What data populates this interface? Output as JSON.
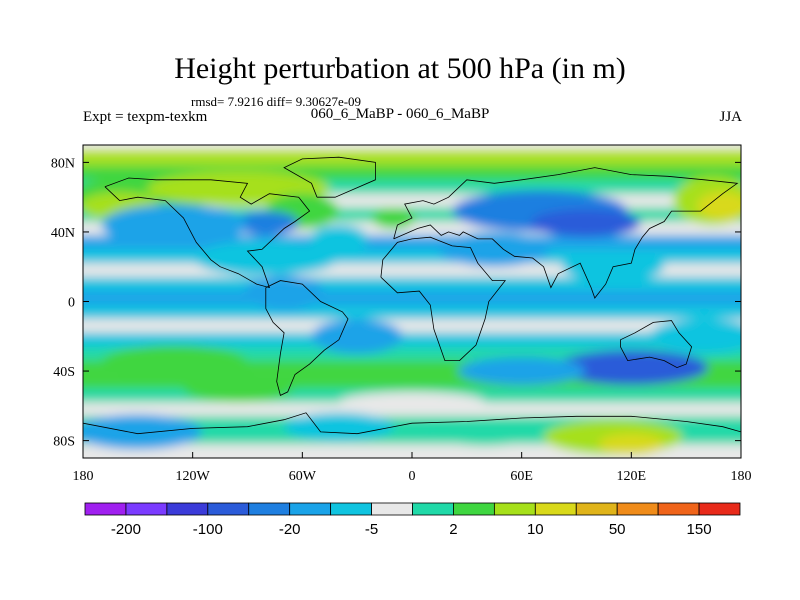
{
  "chart_data": {
    "type": "heatmap",
    "title": "Height perturbation at 500 hPa (in m)",
    "stats_label": "rmsd= 7.9216 diff= 9.30627e-09",
    "experiment_label": "Expt = texpm-texkm",
    "experiment_name": "060_6_MaBP - 060_6_MaBP",
    "season": "JJA",
    "xlim": [
      -180,
      180
    ],
    "ylim": [
      -90,
      90
    ],
    "x_ticks": [
      {
        "value": -180,
        "label": "180"
      },
      {
        "value": -120,
        "label": "120W"
      },
      {
        "value": -60,
        "label": "60W"
      },
      {
        "value": 0,
        "label": "0"
      },
      {
        "value": 60,
        "label": "60E"
      },
      {
        "value": 120,
        "label": "120E"
      },
      {
        "value": 180,
        "label": "180"
      }
    ],
    "y_ticks": [
      {
        "value": 80,
        "label": "80N"
      },
      {
        "value": 40,
        "label": "40N"
      },
      {
        "value": 0,
        "label": "0"
      },
      {
        "value": -40,
        "label": "40S"
      },
      {
        "value": -80,
        "label": "80S"
      }
    ],
    "colorbar": {
      "colors": [
        "#a020f0",
        "#7b3bff",
        "#3b3bd9",
        "#2b5bd9",
        "#1f7fe0",
        "#1aa3e8",
        "#10c4e0",
        "#e8e8e8",
        "#20d9a8",
        "#3fd640",
        "#a6e01a",
        "#d9d91a",
        "#e0b41a",
        "#f08c1a",
        "#f0641a",
        "#e82a1a"
      ],
      "labels": [
        {
          "boundary": 1,
          "text": "-200"
        },
        {
          "boundary": 3,
          "text": "-100"
        },
        {
          "boundary": 5,
          "text": "-20"
        },
        {
          "boundary": 7,
          "text": "-5"
        },
        {
          "boundary": 9,
          "text": "2"
        },
        {
          "boundary": 11,
          "text": "10"
        },
        {
          "boundary": 13,
          "text": "50"
        },
        {
          "boundary": 15,
          "text": "150"
        }
      ]
    },
    "bands": [
      {
        "lat": 82,
        "level": 3
      },
      {
        "lat": 74,
        "level": 2
      },
      {
        "lat": 66,
        "level": 1
      },
      {
        "lat": 58,
        "level": 0
      },
      {
        "lat": 50,
        "level": 1
      },
      {
        "lat": 42,
        "level": 0
      },
      {
        "lat": 34,
        "level": -2
      },
      {
        "lat": 26,
        "level": -1
      },
      {
        "lat": 18,
        "level": 0
      },
      {
        "lat": 10,
        "level": -1
      },
      {
        "lat": 2,
        "level": -2
      },
      {
        "lat": -6,
        "level": -1
      },
      {
        "lat": -14,
        "level": 0
      },
      {
        "lat": -22,
        "level": -1
      },
      {
        "lat": -30,
        "level": 1
      },
      {
        "lat": -38,
        "level": 2
      },
      {
        "lat": -46,
        "level": 2
      },
      {
        "lat": -54,
        "level": 1
      },
      {
        "lat": -62,
        "level": 0
      },
      {
        "lat": -70,
        "level": 1
      },
      {
        "lat": -78,
        "level": 1
      },
      {
        "lat": -86,
        "level": 0
      }
    ],
    "anomalies": [
      {
        "lon": -150,
        "lat": 60,
        "dlon": 38,
        "dlat": 12,
        "level": 2
      },
      {
        "lon": -160,
        "lat": 55,
        "dlon": 22,
        "dlat": 8,
        "level": 3
      },
      {
        "lon": 165,
        "lat": 58,
        "dlon": 22,
        "dlat": 14,
        "level": 3
      },
      {
        "lon": 170,
        "lat": 55,
        "dlon": 14,
        "dlat": 8,
        "level": 4
      },
      {
        "lon": -95,
        "lat": 65,
        "dlon": 50,
        "dlat": 10,
        "level": 3
      },
      {
        "lon": -60,
        "lat": 52,
        "dlon": 20,
        "dlat": 10,
        "level": 2
      },
      {
        "lon": -80,
        "lat": 45,
        "dlon": 18,
        "dlat": 7,
        "level": -3
      },
      {
        "lon": -130,
        "lat": 44,
        "dlon": 40,
        "dlat": 12,
        "level": -2
      },
      {
        "lon": -40,
        "lat": 36,
        "dlon": 16,
        "dlat": 8,
        "level": -1
      },
      {
        "lon": -10,
        "lat": 48,
        "dlon": 12,
        "dlat": 6,
        "level": 2
      },
      {
        "lon": 70,
        "lat": 52,
        "dlon": 48,
        "dlat": 12,
        "level": -3
      },
      {
        "lon": 95,
        "lat": 45,
        "dlon": 30,
        "dlat": 8,
        "level": -4
      },
      {
        "lon": 45,
        "lat": 30,
        "dlon": 30,
        "dlat": 10,
        "level": -2
      },
      {
        "lon": 110,
        "lat": 20,
        "dlon": 28,
        "dlat": 8,
        "level": -1
      },
      {
        "lon": -80,
        "lat": 25,
        "dlon": 40,
        "dlat": 10,
        "level": -1
      },
      {
        "lon": -70,
        "lat": 5,
        "dlon": 22,
        "dlat": 10,
        "level": -2
      },
      {
        "lon": -30,
        "lat": -20,
        "dlon": 25,
        "dlat": 10,
        "level": -2
      },
      {
        "lon": 120,
        "lat": -38,
        "dlon": 42,
        "dlat": 10,
        "level": -4
      },
      {
        "lon": 60,
        "lat": -40,
        "dlon": 35,
        "dlat": 8,
        "level": -2
      },
      {
        "lon": 160,
        "lat": -20,
        "dlon": 30,
        "dlat": 10,
        "level": -1
      },
      {
        "lon": -130,
        "lat": -35,
        "dlon": 40,
        "dlat": 10,
        "level": 2
      },
      {
        "lon": -95,
        "lat": -50,
        "dlon": 30,
        "dlat": 8,
        "level": 2
      },
      {
        "lon": -150,
        "lat": -75,
        "dlon": 35,
        "dlat": 10,
        "level": -2
      },
      {
        "lon": 110,
        "lat": -78,
        "dlon": 38,
        "dlat": 10,
        "level": 3
      },
      {
        "lon": 120,
        "lat": -82,
        "dlon": 18,
        "dlat": 6,
        "level": 4
      },
      {
        "lon": 40,
        "lat": -75,
        "dlon": 30,
        "dlat": 8,
        "level": 1
      },
      {
        "lon": -40,
        "lat": -72,
        "dlon": 30,
        "dlat": 8,
        "level": -1
      },
      {
        "lon": 0,
        "lat": -58,
        "dlon": 40,
        "dlat": 6,
        "level": 0
      }
    ],
    "coastlines": [
      [
        [
          -168,
          66
        ],
        [
          -160,
          58
        ],
        [
          -150,
          60
        ],
        [
          -135,
          58
        ],
        [
          -125,
          48
        ],
        [
          -118,
          34
        ],
        [
          -110,
          24
        ],
        [
          -105,
          20
        ],
        [
          -95,
          16
        ],
        [
          -85,
          10
        ],
        [
          -78,
          8
        ],
        [
          -82,
          20
        ],
        [
          -90,
          29
        ],
        [
          -82,
          30
        ],
        [
          -76,
          36
        ],
        [
          -70,
          42
        ],
        [
          -64,
          46
        ],
        [
          -56,
          52
        ],
        [
          -62,
          60
        ],
        [
          -78,
          62
        ],
        [
          -88,
          56
        ],
        [
          -94,
          60
        ],
        [
          -90,
          68
        ],
        [
          -110,
          70
        ],
        [
          -125,
          70
        ],
        [
          -140,
          70
        ],
        [
          -155,
          71
        ],
        [
          -168,
          66
        ]
      ],
      [
        [
          -80,
          8
        ],
        [
          -72,
          12
        ],
        [
          -60,
          10
        ],
        [
          -50,
          0
        ],
        [
          -38,
          -6
        ],
        [
          -35,
          -10
        ],
        [
          -40,
          -22
        ],
        [
          -48,
          -28
        ],
        [
          -56,
          -36
        ],
        [
          -64,
          -42
        ],
        [
          -68,
          -52
        ],
        [
          -72,
          -54
        ],
        [
          -74,
          -46
        ],
        [
          -72,
          -30
        ],
        [
          -70,
          -18
        ],
        [
          -76,
          -12
        ],
        [
          -80,
          -4
        ],
        [
          -80,
          8
        ]
      ],
      [
        [
          -17,
          14
        ],
        [
          -16,
          24
        ],
        [
          -8,
          34
        ],
        [
          0,
          36
        ],
        [
          10,
          37
        ],
        [
          22,
          32
        ],
        [
          32,
          31
        ],
        [
          36,
          22
        ],
        [
          44,
          12
        ],
        [
          51,
          12
        ],
        [
          42,
          0
        ],
        [
          40,
          -10
        ],
        [
          35,
          -25
        ],
        [
          26,
          -34
        ],
        [
          18,
          -34
        ],
        [
          12,
          -16
        ],
        [
          10,
          -2
        ],
        [
          4,
          6
        ],
        [
          -8,
          5
        ],
        [
          -17,
          14
        ]
      ],
      [
        [
          -10,
          36
        ],
        [
          -8,
          44
        ],
        [
          0,
          48
        ],
        [
          -4,
          56
        ],
        [
          6,
          58
        ],
        [
          12,
          56
        ],
        [
          20,
          60
        ],
        [
          30,
          70
        ],
        [
          45,
          68
        ],
        [
          60,
          70
        ],
        [
          80,
          73
        ],
        [
          100,
          77
        ],
        [
          120,
          73
        ],
        [
          140,
          72
        ],
        [
          160,
          70
        ],
        [
          178,
          68
        ],
        [
          170,
          62
        ],
        [
          158,
          52
        ],
        [
          142,
          52
        ],
        [
          138,
          46
        ],
        [
          130,
          42
        ],
        [
          126,
          37
        ],
        [
          122,
          30
        ],
        [
          120,
          22
        ],
        [
          110,
          20
        ],
        [
          106,
          10
        ],
        [
          100,
          2
        ],
        [
          98,
          8
        ],
        [
          92,
          22
        ],
        [
          80,
          16
        ],
        [
          76,
          8
        ],
        [
          72,
          20
        ],
        [
          66,
          25
        ],
        [
          56,
          26
        ],
        [
          50,
          30
        ],
        [
          44,
          36
        ],
        [
          36,
          36
        ],
        [
          28,
          40
        ],
        [
          26,
          38
        ],
        [
          20,
          40
        ],
        [
          16,
          38
        ],
        [
          10,
          44
        ],
        [
          3,
          42
        ],
        [
          -10,
          36
        ]
      ],
      [
        [
          114,
          -22
        ],
        [
          122,
          -18
        ],
        [
          132,
          -12
        ],
        [
          142,
          -11
        ],
        [
          146,
          -18
        ],
        [
          153,
          -26
        ],
        [
          150,
          -36
        ],
        [
          145,
          -38
        ],
        [
          138,
          -34
        ],
        [
          130,
          -32
        ],
        [
          118,
          -34
        ],
        [
          114,
          -26
        ],
        [
          114,
          -22
        ]
      ],
      [
        [
          -52,
          60
        ],
        [
          -42,
          60
        ],
        [
          -20,
          70
        ],
        [
          -20,
          80
        ],
        [
          -40,
          83
        ],
        [
          -60,
          82
        ],
        [
          -70,
          77
        ],
        [
          -55,
          68
        ],
        [
          -52,
          60
        ]
      ],
      [
        [
          -180,
          -70
        ],
        [
          -150,
          -76
        ],
        [
          -120,
          -73
        ],
        [
          -90,
          -72
        ],
        [
          -70,
          -68
        ],
        [
          -58,
          -64
        ],
        [
          -50,
          -75
        ],
        [
          -30,
          -76
        ],
        [
          0,
          -70
        ],
        [
          30,
          -69
        ],
        [
          60,
          -67
        ],
        [
          90,
          -66
        ],
        [
          120,
          -66
        ],
        [
          150,
          -69
        ],
        [
          170,
          -72
        ],
        [
          180,
          -75
        ]
      ]
    ]
  }
}
